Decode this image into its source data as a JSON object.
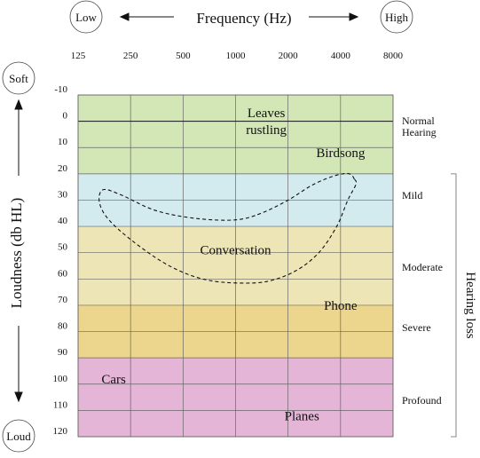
{
  "chart_data": {
    "type": "audiogram",
    "title": "",
    "xlabel": "Frequency (Hz)",
    "ylabel": "Loudness (db HL)",
    "x_scale": "log",
    "x_ticks": [
      125,
      250,
      500,
      1000,
      2000,
      4000,
      8000
    ],
    "x_tick_labels": [
      "125",
      "250",
      "500",
      "1000",
      "2000",
      "4000",
      "8000"
    ],
    "y_ticks": [
      -10,
      0,
      10,
      20,
      30,
      40,
      50,
      60,
      70,
      80,
      90,
      100,
      110,
      120
    ],
    "y_tick_labels": [
      "-10",
      "0",
      "10",
      "20",
      "30",
      "40",
      "50",
      "60",
      "70",
      "80",
      "90",
      "100",
      "110",
      "120"
    ],
    "ylim": [
      -10,
      120
    ],
    "y_inverted": true,
    "grid": true,
    "x_end_labels": {
      "low": "Low",
      "high": "High"
    },
    "y_end_labels": {
      "top": "Soft",
      "bottom": "Loud"
    },
    "bands": [
      {
        "name": "Normal Hearing",
        "label_lines": [
          "Normal",
          "Hearing"
        ],
        "from": -10,
        "to": 20,
        "color": "#d3e7b6"
      },
      {
        "name": "Mild",
        "label_lines": [
          "Mild"
        ],
        "from": 20,
        "to": 40,
        "color": "#d3ebef"
      },
      {
        "name": "Moderate",
        "label_lines": [
          "Moderate"
        ],
        "from": 40,
        "to": 70,
        "color": "#ede5b5"
      },
      {
        "name": "Severe",
        "label_lines": [
          "Severe"
        ],
        "from": 70,
        "to": 90,
        "color": "#ecd58c"
      },
      {
        "name": "Profound",
        "label_lines": [
          "Profound"
        ],
        "from": 90,
        "to": 120,
        "color": "#e4b5d6"
      }
    ],
    "bracket_label": "Hearing loss",
    "bracket_range": [
      20,
      120
    ],
    "sounds": [
      {
        "label_lines": [
          "Leaves",
          "rustling"
        ],
        "x": 1500,
        "y": 0
      },
      {
        "label_lines": [
          "Birdsong"
        ],
        "x": 4000,
        "y": 12
      },
      {
        "label_lines": [
          "Conversation"
        ],
        "x": 1000,
        "y": 49
      },
      {
        "label_lines": [
          "Phone"
        ],
        "x": 4000,
        "y": 70
      },
      {
        "label_lines": [
          "Cars"
        ],
        "x": 200,
        "y": 98
      },
      {
        "label_lines": [
          "Planes"
        ],
        "x": 2400,
        "y": 112
      }
    ],
    "speech_banana": {
      "style": "dashed",
      "points": [
        [
          4800,
          22
        ],
        [
          4500,
          20
        ],
        [
          3800,
          20.5
        ],
        [
          2800,
          24
        ],
        [
          2000,
          30
        ],
        [
          1400,
          35
        ],
        [
          1000,
          37.5
        ],
        [
          600,
          37
        ],
        [
          350,
          34
        ],
        [
          220,
          28
        ],
        [
          175,
          26
        ],
        [
          165,
          30
        ],
        [
          180,
          36
        ],
        [
          230,
          43
        ],
        [
          350,
          52
        ],
        [
          500,
          57.5
        ],
        [
          700,
          60.5
        ],
        [
          1000,
          61.5
        ],
        [
          1500,
          61
        ],
        [
          2200,
          57
        ],
        [
          3000,
          50
        ],
        [
          3800,
          40
        ],
        [
          4400,
          30
        ],
        [
          4900,
          24
        ]
      ]
    }
  }
}
